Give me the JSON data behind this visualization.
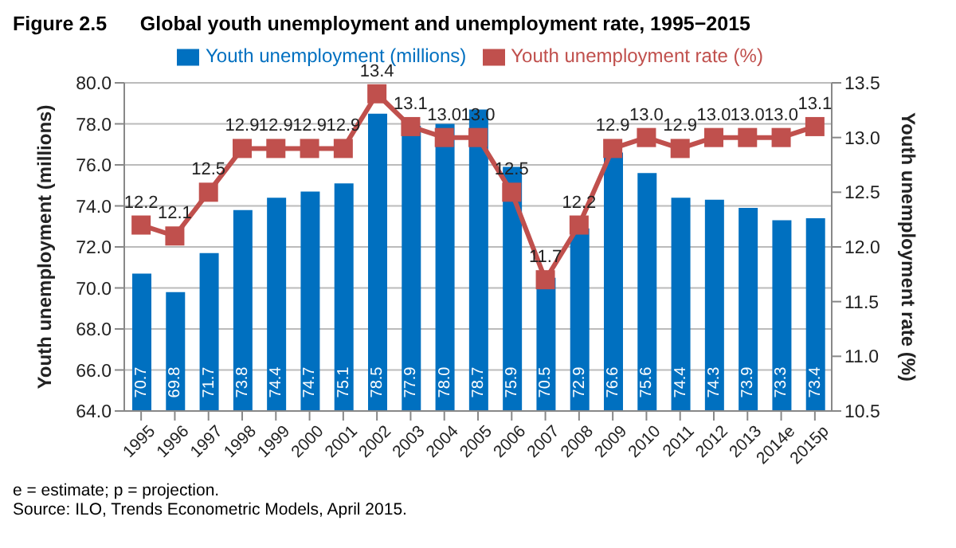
{
  "chart_data": {
    "type": "bar",
    "title": "Figure 2.5      Global youth unemployment and unemployment rate, 1995−2015",
    "categories": [
      "1995",
      "1996",
      "1997",
      "1998",
      "1999",
      "2000",
      "2001",
      "2002",
      "2003",
      "2004",
      "2005",
      "2006",
      "2007",
      "2008",
      "2009",
      "2010",
      "2011",
      "2012",
      "2013",
      "2014e",
      "2015p"
    ],
    "series": [
      {
        "name": "Youth unemployment (millions)",
        "color": "#0070c0",
        "values": [
          70.7,
          69.8,
          71.7,
          73.8,
          74.4,
          74.7,
          75.1,
          78.5,
          77.9,
          78.0,
          78.7,
          75.9,
          70.5,
          72.9,
          76.6,
          75.6,
          74.4,
          74.3,
          73.9,
          73.3,
          73.4
        ],
        "value_labels": [
          "70.7",
          "69.8",
          "71.7",
          "73.8",
          "74.4",
          "74.7",
          "75.1",
          "78.5",
          "77.9",
          "78.0",
          "78.7",
          "75.9",
          "70.5",
          "72.9",
          "76.6",
          "75.6",
          "74.4",
          "74.3",
          "73.9",
          "73.3",
          "73.4"
        ]
      },
      {
        "name": "Youth unemployment rate (%)",
        "type": "line",
        "axis": "y2",
        "color": "#c0504d",
        "marker": "square",
        "values": [
          12.2,
          12.1,
          12.5,
          12.9,
          12.9,
          12.9,
          12.9,
          13.4,
          13.1,
          13.0,
          13.0,
          12.5,
          11.7,
          12.2,
          12.9,
          13.0,
          12.9,
          13.0,
          13.0,
          13.0,
          13.1
        ],
        "value_labels": [
          "12.2",
          "12.1",
          "12.5",
          "12.9",
          "12.9",
          "12.9",
          "12.9",
          "13.4",
          "13.1",
          "13.0",
          "13.0",
          "12.5",
          "11.7",
          "12.2",
          "12.9",
          "13.0",
          "12.9",
          "13.0",
          "13.0",
          "13.0",
          "13.1"
        ]
      }
    ],
    "ylabel": "Youth unemployment (millions)",
    "y2label": "Youth unemployment rate (%)",
    "ylim": [
      64,
      80
    ],
    "yticks": [
      {
        "value": 64,
        "label": "64.0"
      },
      {
        "value": 66,
        "label": "66.0"
      },
      {
        "value": 68,
        "label": "68.0"
      },
      {
        "value": 70,
        "label": "70.0"
      },
      {
        "value": 72,
        "label": "72.0"
      },
      {
        "value": 74,
        "label": "74.0"
      },
      {
        "value": 76,
        "label": "76.0"
      },
      {
        "value": 78,
        "label": "78.0"
      },
      {
        "value": 80,
        "label": "80.0"
      }
    ],
    "y2lim": [
      10.5,
      13.5
    ],
    "y2ticks": [
      {
        "value": 10.5,
        "label": "10.5"
      },
      {
        "value": 11,
        "label": "11.0"
      },
      {
        "value": 11.5,
        "label": "11.5"
      },
      {
        "value": 12,
        "label": "12.0"
      },
      {
        "value": 12.5,
        "label": "12.5"
      },
      {
        "value": 13,
        "label": "13.0"
      },
      {
        "value": 13.5,
        "label": "13.5"
      }
    ],
    "grid": "y",
    "legend": "top",
    "annotations": [
      "e = estimate; p = projection.",
      "Source: ILO, Trends Econometric Models, April 2015."
    ]
  }
}
